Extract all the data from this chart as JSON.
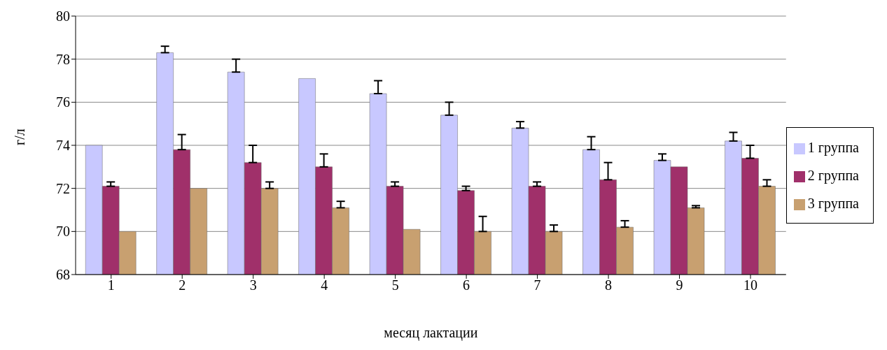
{
  "chart_data": {
    "type": "bar",
    "xlabel": "месяц лактации",
    "ylabel": "г/л",
    "categories": [
      "1",
      "2",
      "3",
      "4",
      "5",
      "6",
      "7",
      "8",
      "9",
      "10"
    ],
    "series": [
      {
        "name": "1 группа",
        "color": "#c8c8ff",
        "values": [
          74.0,
          78.3,
          77.4,
          77.1,
          76.4,
          75.4,
          74.8,
          73.8,
          73.3,
          74.2
        ],
        "errors": [
          null,
          [
            78.3,
            78.6
          ],
          [
            77.4,
            78.0
          ],
          null,
          [
            76.4,
            77.0
          ],
          [
            75.4,
            76.0
          ],
          [
            74.8,
            75.1
          ],
          [
            73.8,
            74.4
          ],
          [
            73.3,
            73.6
          ],
          [
            74.2,
            74.6
          ]
        ]
      },
      {
        "name": "2 группа",
        "color": "#a0306a",
        "values": [
          72.1,
          73.8,
          73.2,
          73.0,
          72.1,
          71.9,
          72.1,
          72.4,
          73.0,
          73.4
        ],
        "errors": [
          [
            72.1,
            72.3
          ],
          [
            73.8,
            74.5
          ],
          [
            73.2,
            74.0
          ],
          [
            73.0,
            73.6
          ],
          [
            72.1,
            72.3
          ],
          [
            71.9,
            72.1
          ],
          [
            72.1,
            72.3
          ],
          [
            72.4,
            73.2
          ],
          null,
          [
            73.4,
            74.0
          ]
        ]
      },
      {
        "name": "3 группа",
        "color": "#c8a070",
        "values": [
          70.0,
          72.0,
          72.0,
          71.1,
          70.1,
          70.0,
          70.0,
          70.2,
          71.1,
          72.1
        ],
        "errors": [
          null,
          null,
          [
            72.0,
            72.3
          ],
          [
            71.1,
            71.4
          ],
          null,
          [
            70.0,
            70.7
          ],
          [
            70.0,
            70.3
          ],
          [
            70.2,
            70.5
          ],
          [
            71.1,
            71.2
          ],
          [
            72.1,
            72.4
          ]
        ]
      }
    ],
    "ylim": [
      68,
      80
    ],
    "yticks": [
      68,
      70,
      72,
      74,
      76,
      78,
      80
    ],
    "grid": "y",
    "legend": "right"
  }
}
